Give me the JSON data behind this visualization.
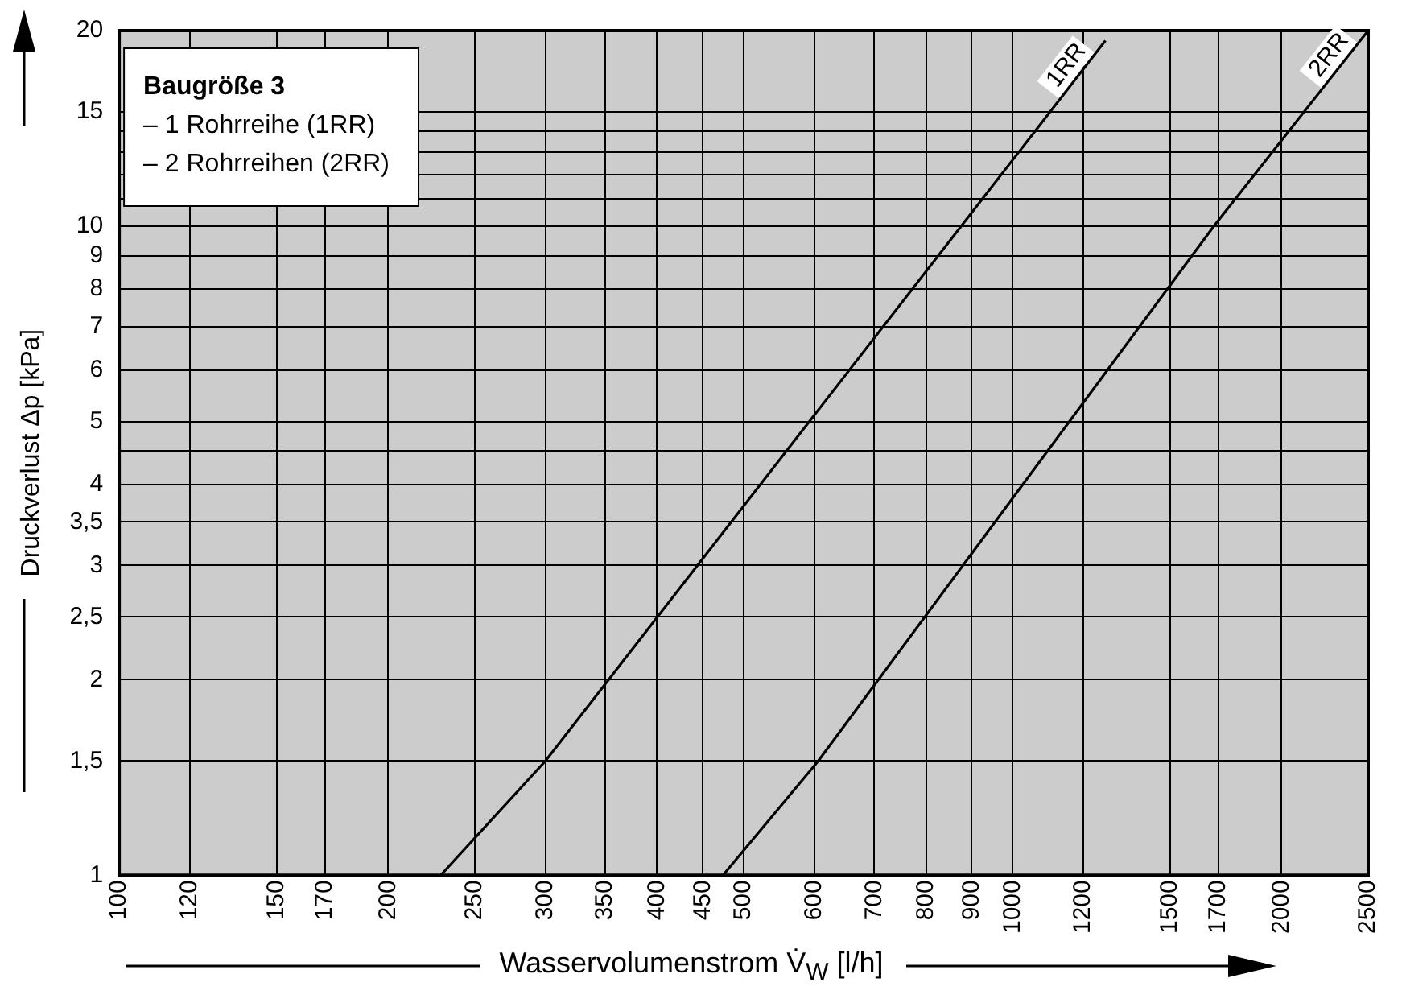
{
  "chart_data": {
    "type": "line",
    "xlabel": "Wasservolumenstrom  V̇$_{W}$ [l/h]",
    "ylabel": "Druckverlust Δp [kPa]",
    "annotations": [
      "Baugröße 3",
      "– 1 Rohrreihe (1RR)",
      "– 2 Rohrreihen (2RR)"
    ],
    "series": [
      {
        "name": "1RR",
        "color": "#000000",
        "x": [
          229,
          300,
          1270
        ],
        "values": [
          1,
          1.5,
          19.3
        ]
      },
      {
        "name": "2RR",
        "color": "#000000",
        "x": [
          474,
          606,
          1680,
          2500
        ],
        "values": [
          1,
          1.5,
          10,
          20
        ]
      }
    ],
    "log": "xy",
    "xlim": [
      100,
      2500
    ],
    "ylim": [
      1,
      20
    ],
    "xticks": [
      100,
      120,
      150,
      170,
      200,
      250,
      300,
      350,
      400,
      450,
      500,
      600,
      700,
      800,
      900,
      1000,
      1200,
      1500,
      1700,
      2000,
      2500
    ],
    "yticks": [
      1,
      {
        "value": 1.5,
        "label": "1,5"
      },
      2,
      {
        "value": 2.5,
        "label": "2,5"
      },
      3,
      {
        "value": 3.5,
        "label": "3,5"
      },
      4,
      {
        "value": 4.5,
        "label": null
      },
      5,
      6,
      7,
      8,
      9,
      10,
      {
        "value": 11,
        "label": null
      },
      {
        "value": 12,
        "label": null
      },
      {
        "value": 13,
        "label": null
      },
      {
        "value": 14,
        "label": null
      },
      15,
      20
    ],
    "grid": true,
    "legend": false,
    "marker": "none",
    "line_style": "solid"
  }
}
